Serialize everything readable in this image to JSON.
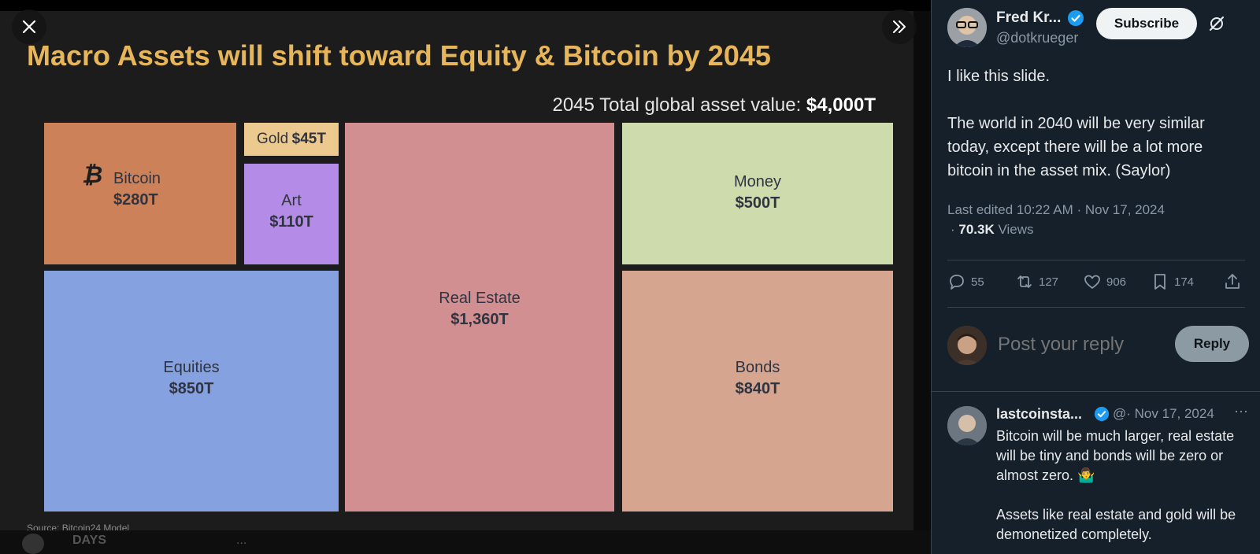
{
  "viewer": {
    "slide": {
      "title": "Macro Assets will shift toward Equity & Bitcoin by 2045",
      "subtitle_prefix": "2045 Total global asset value: ",
      "subtitle_value": "$4,000T",
      "source": "Source: Bitcoin24 Model",
      "cells": {
        "bitcoin": {
          "label": "Bitcoin",
          "value": "$280T",
          "color": "#cc8158"
        },
        "gold": {
          "label": "Gold",
          "value": "$45T",
          "color": "#ecc98f"
        },
        "art": {
          "label": "Art",
          "value": "$110T",
          "color": "#b48be6"
        },
        "real_estate": {
          "label": "Real Estate",
          "value": "$1,360T",
          "color": "#d18f91"
        },
        "money": {
          "label": "Money",
          "value": "$500T",
          "color": "#cddbad"
        },
        "equities": {
          "label": "Equities",
          "value": "$850T",
          "color": "#86a1e0"
        },
        "bonds": {
          "label": "Bonds",
          "value": "$840T",
          "color": "#d6a58f"
        }
      }
    },
    "bottom_text": "DAYS",
    "bottom_more": "...",
    "icons": {
      "close": "close-icon",
      "expand": "chevron-double-right-icon"
    }
  },
  "post": {
    "author_name": "Fred Kr...",
    "author_handle": "@dotkrueger",
    "subscribe_label": "Subscribe",
    "text": "I like this slide.\n\nThe world in 2040 will be very similar today, except there will be a lot more bitcoin in the asset mix. (Saylor)",
    "edited_meta": "Last edited 10:22 AM · Nov 17, 2024",
    "views_count": "70.3K",
    "views_label": " Views",
    "actions": {
      "replies": "55",
      "reposts": "127",
      "likes": "906",
      "bookmarks": "174"
    }
  },
  "reply_box": {
    "placeholder": "Post your reply",
    "button_label": "Reply"
  },
  "comment": {
    "name": "lastcoinsta...",
    "meta": "@· Nov 17, 2024",
    "more": "···",
    "text": "Bitcoin will be much larger, real estate will be tiny and bonds will be zero or almost zero. 🤷‍♂️\n\nAssets like real estate and gold will be demonetized completely."
  },
  "colors": {
    "panel_bg": "#15202b",
    "accent_verified": "#1d9bf0",
    "slide_title": "#e8b65a"
  }
}
